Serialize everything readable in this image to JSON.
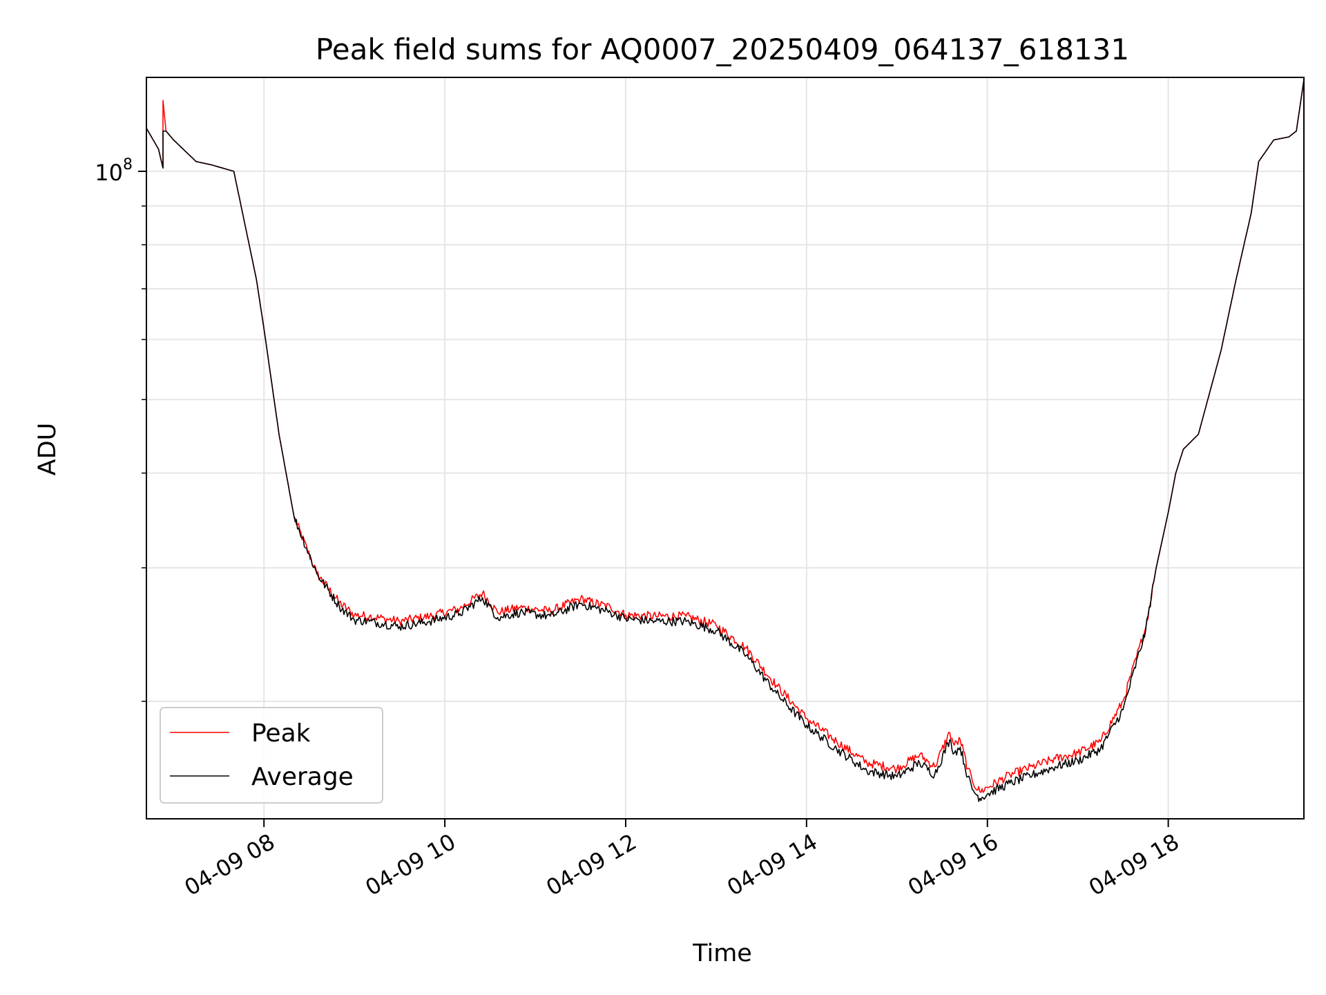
{
  "chart_data": {
    "type": "line",
    "title": "Peak field sums for AQ0007_20250409_064137_618131",
    "xlabel": "Time",
    "ylabel": "ADU",
    "yscale": "log",
    "grid": true,
    "legend_position": "lower-left",
    "xlim": [
      "04-09 06:42",
      "04-09 19:30"
    ],
    "ylim": [
      14000000,
      133000000
    ],
    "x_ticks": [
      "04-09 08",
      "04-09 10",
      "04-09 12",
      "04-09 14",
      "04-09 16",
      "04-09 18"
    ],
    "y_ticks": [
      {
        "value": 100000000,
        "base": "10",
        "exponent": "8"
      }
    ],
    "series": [
      {
        "name": "Peak",
        "color": "#ff0000",
        "x": [
          "04-09 06:42",
          "04-09 06:50",
          "04-09 06:53",
          "04-09 06:53",
          "04-09 06:55",
          "04-09 07:00",
          "04-09 07:15",
          "04-09 07:25",
          "04-09 07:40",
          "04-09 07:55",
          "04-09 08:00",
          "04-09 08:10",
          "04-09 08:20",
          "04-09 08:35",
          "04-09 08:50",
          "04-09 09:00",
          "04-09 09:10",
          "04-09 09:20",
          "04-09 09:30",
          "04-09 09:50",
          "04-09 10:10",
          "04-09 10:25",
          "04-09 10:35",
          "04-09 10:50",
          "04-09 11:10",
          "04-09 11:30",
          "04-09 11:50",
          "04-09 12:00",
          "04-09 12:20",
          "04-09 12:40",
          "04-09 13:00",
          "04-09 13:20",
          "04-09 13:40",
          "04-09 14:00",
          "04-09 14:20",
          "04-09 14:40",
          "04-09 15:00",
          "04-09 15:15",
          "04-09 15:25",
          "04-09 15:35",
          "04-09 15:38",
          "04-09 15:42",
          "04-09 15:47",
          "04-09 15:50",
          "04-09 15:55",
          "04-09 16:00",
          "04-09 16:15",
          "04-09 16:30",
          "04-09 16:45",
          "04-09 17:00",
          "04-09 17:15",
          "04-09 17:30",
          "04-09 17:45",
          "04-09 17:52",
          "04-09 18:00",
          "04-09 18:05",
          "04-09 18:10",
          "04-09 18:20",
          "04-09 18:35",
          "04-09 18:45",
          "04-09 18:55",
          "04-09 19:00",
          "04-09 19:10",
          "04-09 19:20",
          "04-09 19:25",
          "04-09 19:30"
        ],
        "y": [
          114000000,
          107000000,
          101000000,
          124000000,
          113000000,
          110000000,
          103000000,
          102000000,
          100000000,
          72000000,
          62000000,
          45000000,
          35000000,
          29500000,
          27000000,
          26000000,
          25900000,
          25700000,
          25500000,
          25900000,
          26500000,
          27800000,
          26200000,
          26600000,
          26300000,
          27300000,
          26600000,
          26000000,
          25900000,
          25900000,
          25200000,
          23500000,
          21000000,
          19000000,
          17700000,
          16600000,
          16300000,
          17000000,
          16400000,
          18200000,
          17500000,
          17800000,
          16300000,
          15700000,
          15200000,
          15400000,
          16000000,
          16400000,
          16800000,
          17100000,
          17700000,
          20000000,
          25000000,
          30000000,
          35500000,
          40000000,
          43000000,
          45000000,
          58000000,
          72000000,
          88000000,
          103000000,
          110000000,
          111000000,
          113000000,
          132000000
        ]
      },
      {
        "name": "Average",
        "color": "#000000",
        "x": [
          "04-09 06:42",
          "04-09 06:50",
          "04-09 06:53",
          "04-09 06:53",
          "04-09 06:55",
          "04-09 07:00",
          "04-09 07:15",
          "04-09 07:25",
          "04-09 07:40",
          "04-09 07:55",
          "04-09 08:00",
          "04-09 08:10",
          "04-09 08:20",
          "04-09 08:35",
          "04-09 08:50",
          "04-09 09:00",
          "04-09 09:10",
          "04-09 09:20",
          "04-09 09:30",
          "04-09 09:50",
          "04-09 10:10",
          "04-09 10:25",
          "04-09 10:35",
          "04-09 10:50",
          "04-09 11:10",
          "04-09 11:30",
          "04-09 11:50",
          "04-09 12:00",
          "04-09 12:20",
          "04-09 12:40",
          "04-09 13:00",
          "04-09 13:20",
          "04-09 13:40",
          "04-09 14:00",
          "04-09 14:20",
          "04-09 14:40",
          "04-09 15:00",
          "04-09 15:15",
          "04-09 15:25",
          "04-09 15:35",
          "04-09 15:38",
          "04-09 15:42",
          "04-09 15:47",
          "04-09 15:50",
          "04-09 15:55",
          "04-09 16:00",
          "04-09 16:15",
          "04-09 16:30",
          "04-09 16:45",
          "04-09 17:00",
          "04-09 17:15",
          "04-09 17:30",
          "04-09 17:45",
          "04-09 17:52",
          "04-09 18:00",
          "04-09 18:05",
          "04-09 18:10",
          "04-09 18:20",
          "04-09 18:35",
          "04-09 18:45",
          "04-09 18:55",
          "04-09 19:00",
          "04-09 19:10",
          "04-09 19:20",
          "04-09 19:25",
          "04-09 19:30"
        ],
        "y": [
          114000000,
          107000000,
          101000000,
          113000000,
          113000000,
          110000000,
          103000000,
          102000000,
          100000000,
          72000000,
          62000000,
          45000000,
          35000000,
          29500000,
          26700000,
          25600000,
          25500000,
          25300000,
          25100000,
          25500000,
          26100000,
          27400000,
          25800000,
          26200000,
          25900000,
          26900000,
          26200000,
          25700000,
          25500000,
          25500000,
          24800000,
          23000000,
          20500000,
          18600000,
          17300000,
          16200000,
          15900000,
          16600000,
          16000000,
          17800000,
          17100000,
          17400000,
          15900000,
          15300000,
          14900000,
          15100000,
          15600000,
          16000000,
          16400000,
          16700000,
          17300000,
          19500000,
          24800000,
          30000000,
          35500000,
          40000000,
          43000000,
          45000000,
          58000000,
          72000000,
          88000000,
          103000000,
          110000000,
          111000000,
          113000000,
          132000000
        ]
      }
    ]
  }
}
